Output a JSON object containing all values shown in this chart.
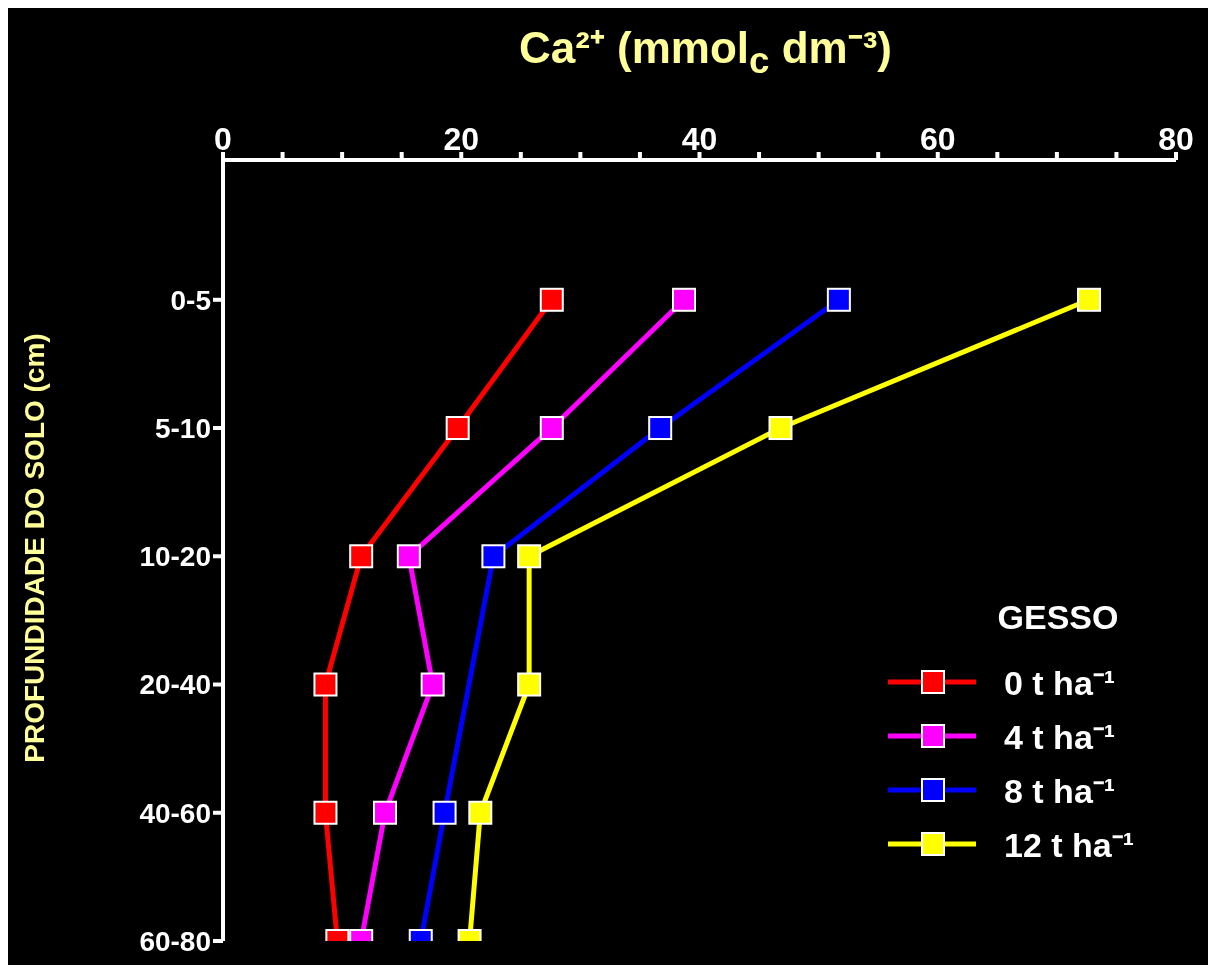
{
  "chart_data": {
    "type": "line",
    "orientation": "horizontal",
    "xlabel": "Ca²⁺ (mmol$_{c}$ dm⁻³)",
    "ylabel": "PROFUNDIDADE DO SOLO (cm)",
    "legend_title": "GESSO",
    "categories": [
      "0-5",
      "5-10",
      "10-20",
      "20-40",
      "40-60",
      "60-80"
    ],
    "xlim": [
      0,
      80
    ],
    "xticks": [
      0,
      {
        "value": 5,
        "label": null
      },
      {
        "value": 10,
        "label": null
      },
      {
        "value": 15,
        "label": null
      },
      20,
      {
        "value": 25,
        "label": null
      },
      {
        "value": 30,
        "label": null
      },
      {
        "value": 35,
        "label": null
      },
      40,
      {
        "value": 45,
        "label": null
      },
      {
        "value": 50,
        "label": null
      },
      {
        "value": 55,
        "label": null
      },
      60,
      {
        "value": 65,
        "label": null
      },
      {
        "value": 70,
        "label": null
      },
      {
        "value": 75,
        "label": null
      },
      80
    ],
    "marker": "square",
    "line_style": "solid",
    "grid": false,
    "legend": "right",
    "series": [
      {
        "name": "0 t ha⁻¹",
        "color": "#ff0000",
        "values": [
          27.6,
          19.7,
          11.6,
          8.6,
          8.6,
          9.6
        ]
      },
      {
        "name": "4 t ha⁻¹",
        "color": "#ff00ff",
        "values": [
          38.7,
          27.6,
          15.6,
          17.6,
          13.6,
          11.6
        ]
      },
      {
        "name": "8 t ha⁻¹",
        "color": "#0000ff",
        "values": [
          51.7,
          36.7,
          22.7,
          null,
          18.6,
          16.6
        ]
      },
      {
        "name": "12 t ha⁻¹",
        "color": "#ffff00",
        "values": [
          72.7,
          46.8,
          25.7,
          25.7,
          21.6,
          20.7
        ]
      }
    ]
  }
}
